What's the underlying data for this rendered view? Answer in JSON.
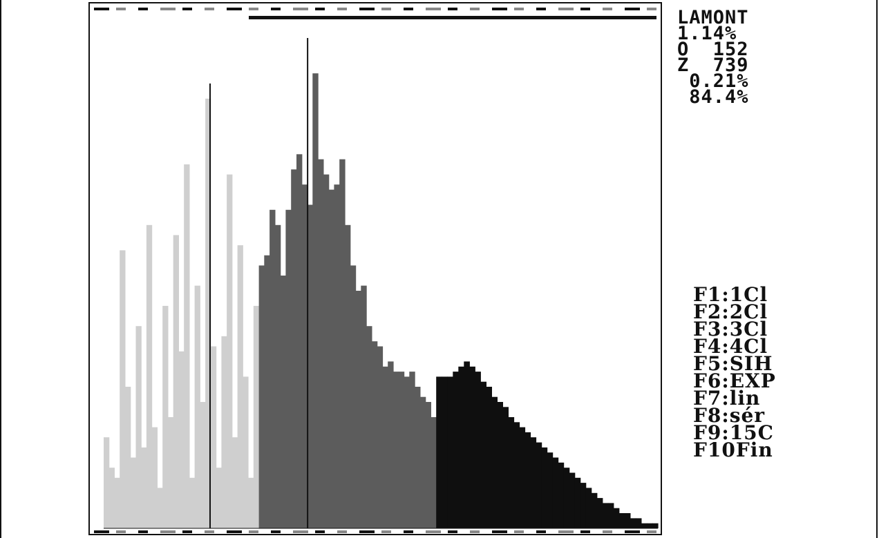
{
  "stats": {
    "title": "LAMONT",
    "line1": "1.14%",
    "line2": "O  152",
    "line3": "Z  739",
    "line4": " 0.21%",
    "line5": " 84.4%"
  },
  "function_keys": [
    {
      "label": "F1:1Cl"
    },
    {
      "label": "F2:2Cl"
    },
    {
      "label": "F3:3Cl"
    },
    {
      "label": "F4:4Cl"
    },
    {
      "label": "F5:SIH"
    },
    {
      "label": "F6:EXP"
    },
    {
      "label": "F7:lin"
    },
    {
      "label": "F8:sér"
    },
    {
      "label": "F9:15C"
    },
    {
      "label": "F10Fin"
    }
  ],
  "colors": {
    "light": "#cfcfcf",
    "medium": "#5c5c5c",
    "dark": "#0f0f0f",
    "ink": "#111111"
  },
  "chart_data": {
    "type": "bar",
    "ylim": [
      0,
      100
    ],
    "groups": [
      {
        "name": "",
        "shade": "light",
        "x_start": 0,
        "x_end": 28,
        "values": [
          18,
          12,
          10,
          55,
          28,
          14,
          40,
          16,
          60,
          20,
          8,
          44,
          22,
          58,
          35,
          72,
          10,
          48,
          25,
          85,
          36,
          12,
          38,
          70,
          18,
          56,
          30,
          10,
          44
        ]
      },
      {
        "name": "",
        "shade": "medium",
        "x_start": 28,
        "x_end": 60,
        "values": [
          52,
          54,
          63,
          60,
          50,
          63,
          71,
          74,
          68,
          64,
          90,
          73,
          70,
          67,
          68,
          73,
          60,
          52,
          47,
          48,
          40,
          37,
          36,
          32,
          33,
          31,
          31,
          30,
          31,
          28,
          26,
          25,
          22
        ]
      },
      {
        "name": "",
        "shade": "dark",
        "x_start": 60,
        "x_end": 100,
        "values": [
          30,
          30,
          30,
          31,
          32,
          33,
          32,
          31,
          29,
          28,
          26,
          25,
          24,
          22,
          21,
          20,
          19,
          18,
          17,
          16,
          15,
          14,
          13,
          12,
          11,
          10,
          9,
          8,
          7,
          6,
          5,
          5,
          4,
          3,
          3,
          2,
          2,
          1,
          1,
          1
        ]
      }
    ],
    "spikes": [
      {
        "x": 36.8,
        "value": 97
      },
      {
        "x": 19.2,
        "value": 88
      }
    ]
  }
}
